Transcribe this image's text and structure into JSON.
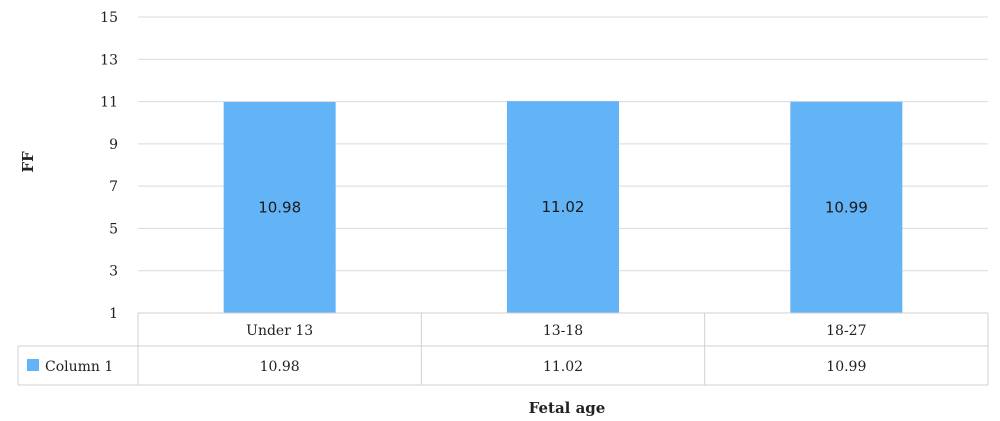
{
  "chart_data": {
    "type": "bar",
    "categories": [
      "Under 13",
      "13-18",
      "18-27"
    ],
    "series": [
      {
        "name": "Column 1",
        "values": [
          10.98,
          11.02,
          10.99
        ],
        "color": "#62b4f7"
      }
    ],
    "data_labels": [
      "10.98",
      "11.02",
      "10.99"
    ],
    "table_values": [
      "10.98",
      "11.02",
      "10.99"
    ],
    "xlabel": "Fetal age",
    "ylabel": "FF",
    "ylim": [
      1,
      15
    ],
    "yticks": [
      1,
      3,
      5,
      7,
      9,
      11,
      13,
      15
    ],
    "grid": true,
    "legend": "data-table"
  }
}
